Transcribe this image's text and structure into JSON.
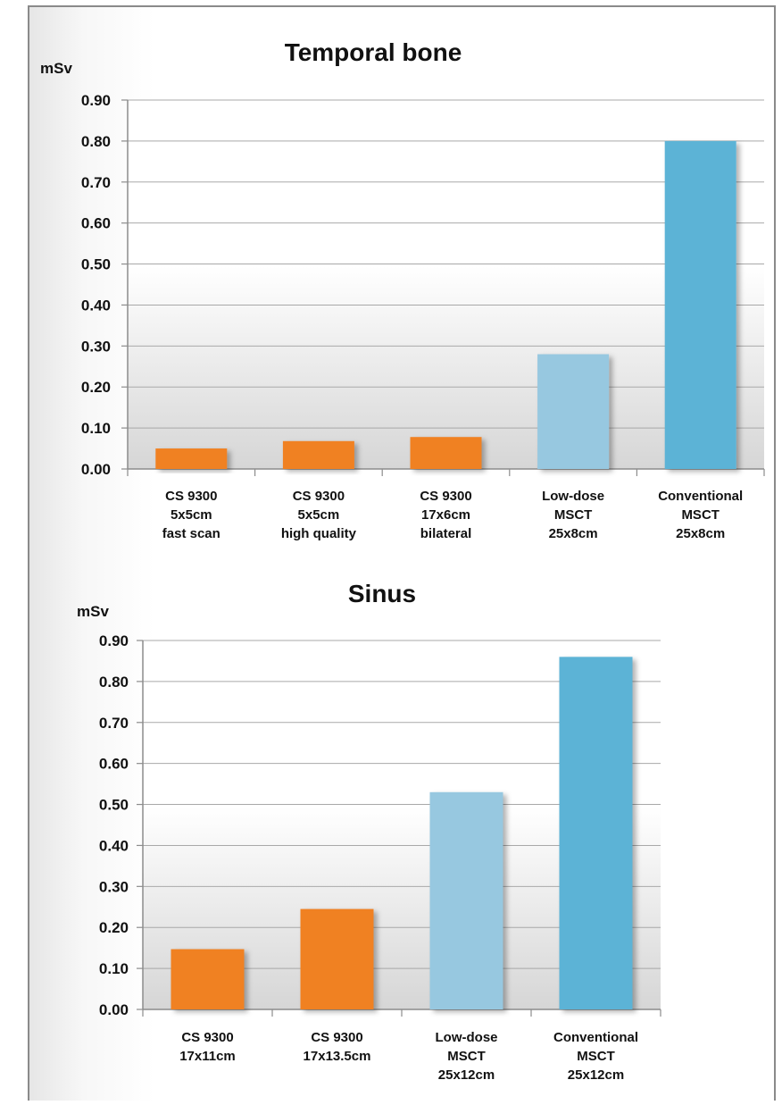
{
  "chart_data": [
    {
      "type": "bar",
      "title": "Temporal bone",
      "ylabel": "mSv",
      "ylim": [
        0,
        0.9
      ],
      "yticks": [
        "0.00",
        "0.10",
        "0.20",
        "0.30",
        "0.40",
        "0.50",
        "0.60",
        "0.70",
        "0.80",
        "0.90"
      ],
      "categories": [
        [
          "CS 9300",
          "5x5cm",
          "fast scan"
        ],
        [
          "CS 9300",
          "5x5cm",
          "high quality"
        ],
        [
          "CS 9300",
          "17x6cm",
          "bilateral"
        ],
        [
          "Low-dose",
          "MSCT",
          "25x8cm"
        ],
        [
          "Conventional",
          "MSCT",
          "25x8cm"
        ]
      ],
      "values": [
        0.05,
        0.068,
        0.078,
        0.28,
        0.8
      ],
      "colors": [
        "#f08124",
        "#f08124",
        "#f08124",
        "#97c8e0",
        "#5cb3d6"
      ],
      "grid": true,
      "legend": "none"
    },
    {
      "type": "bar",
      "title": "Sinus",
      "ylabel": "mSv",
      "ylim": [
        0,
        0.9
      ],
      "yticks": [
        "0.00",
        "0.10",
        "0.20",
        "0.30",
        "0.40",
        "0.50",
        "0.60",
        "0.70",
        "0.80",
        "0.90"
      ],
      "categories": [
        [
          "CS 9300",
          "17x11cm"
        ],
        [
          "CS 9300",
          "17x13.5cm"
        ],
        [
          "Low-dose",
          "MSCT",
          "25x12cm"
        ],
        [
          "Conventional",
          "MSCT",
          "25x12cm"
        ]
      ],
      "values": [
        0.147,
        0.245,
        0.53,
        0.86
      ],
      "colors": [
        "#f08124",
        "#f08124",
        "#97c8e0",
        "#5cb3d6"
      ],
      "grid": true,
      "legend": "none"
    }
  ]
}
